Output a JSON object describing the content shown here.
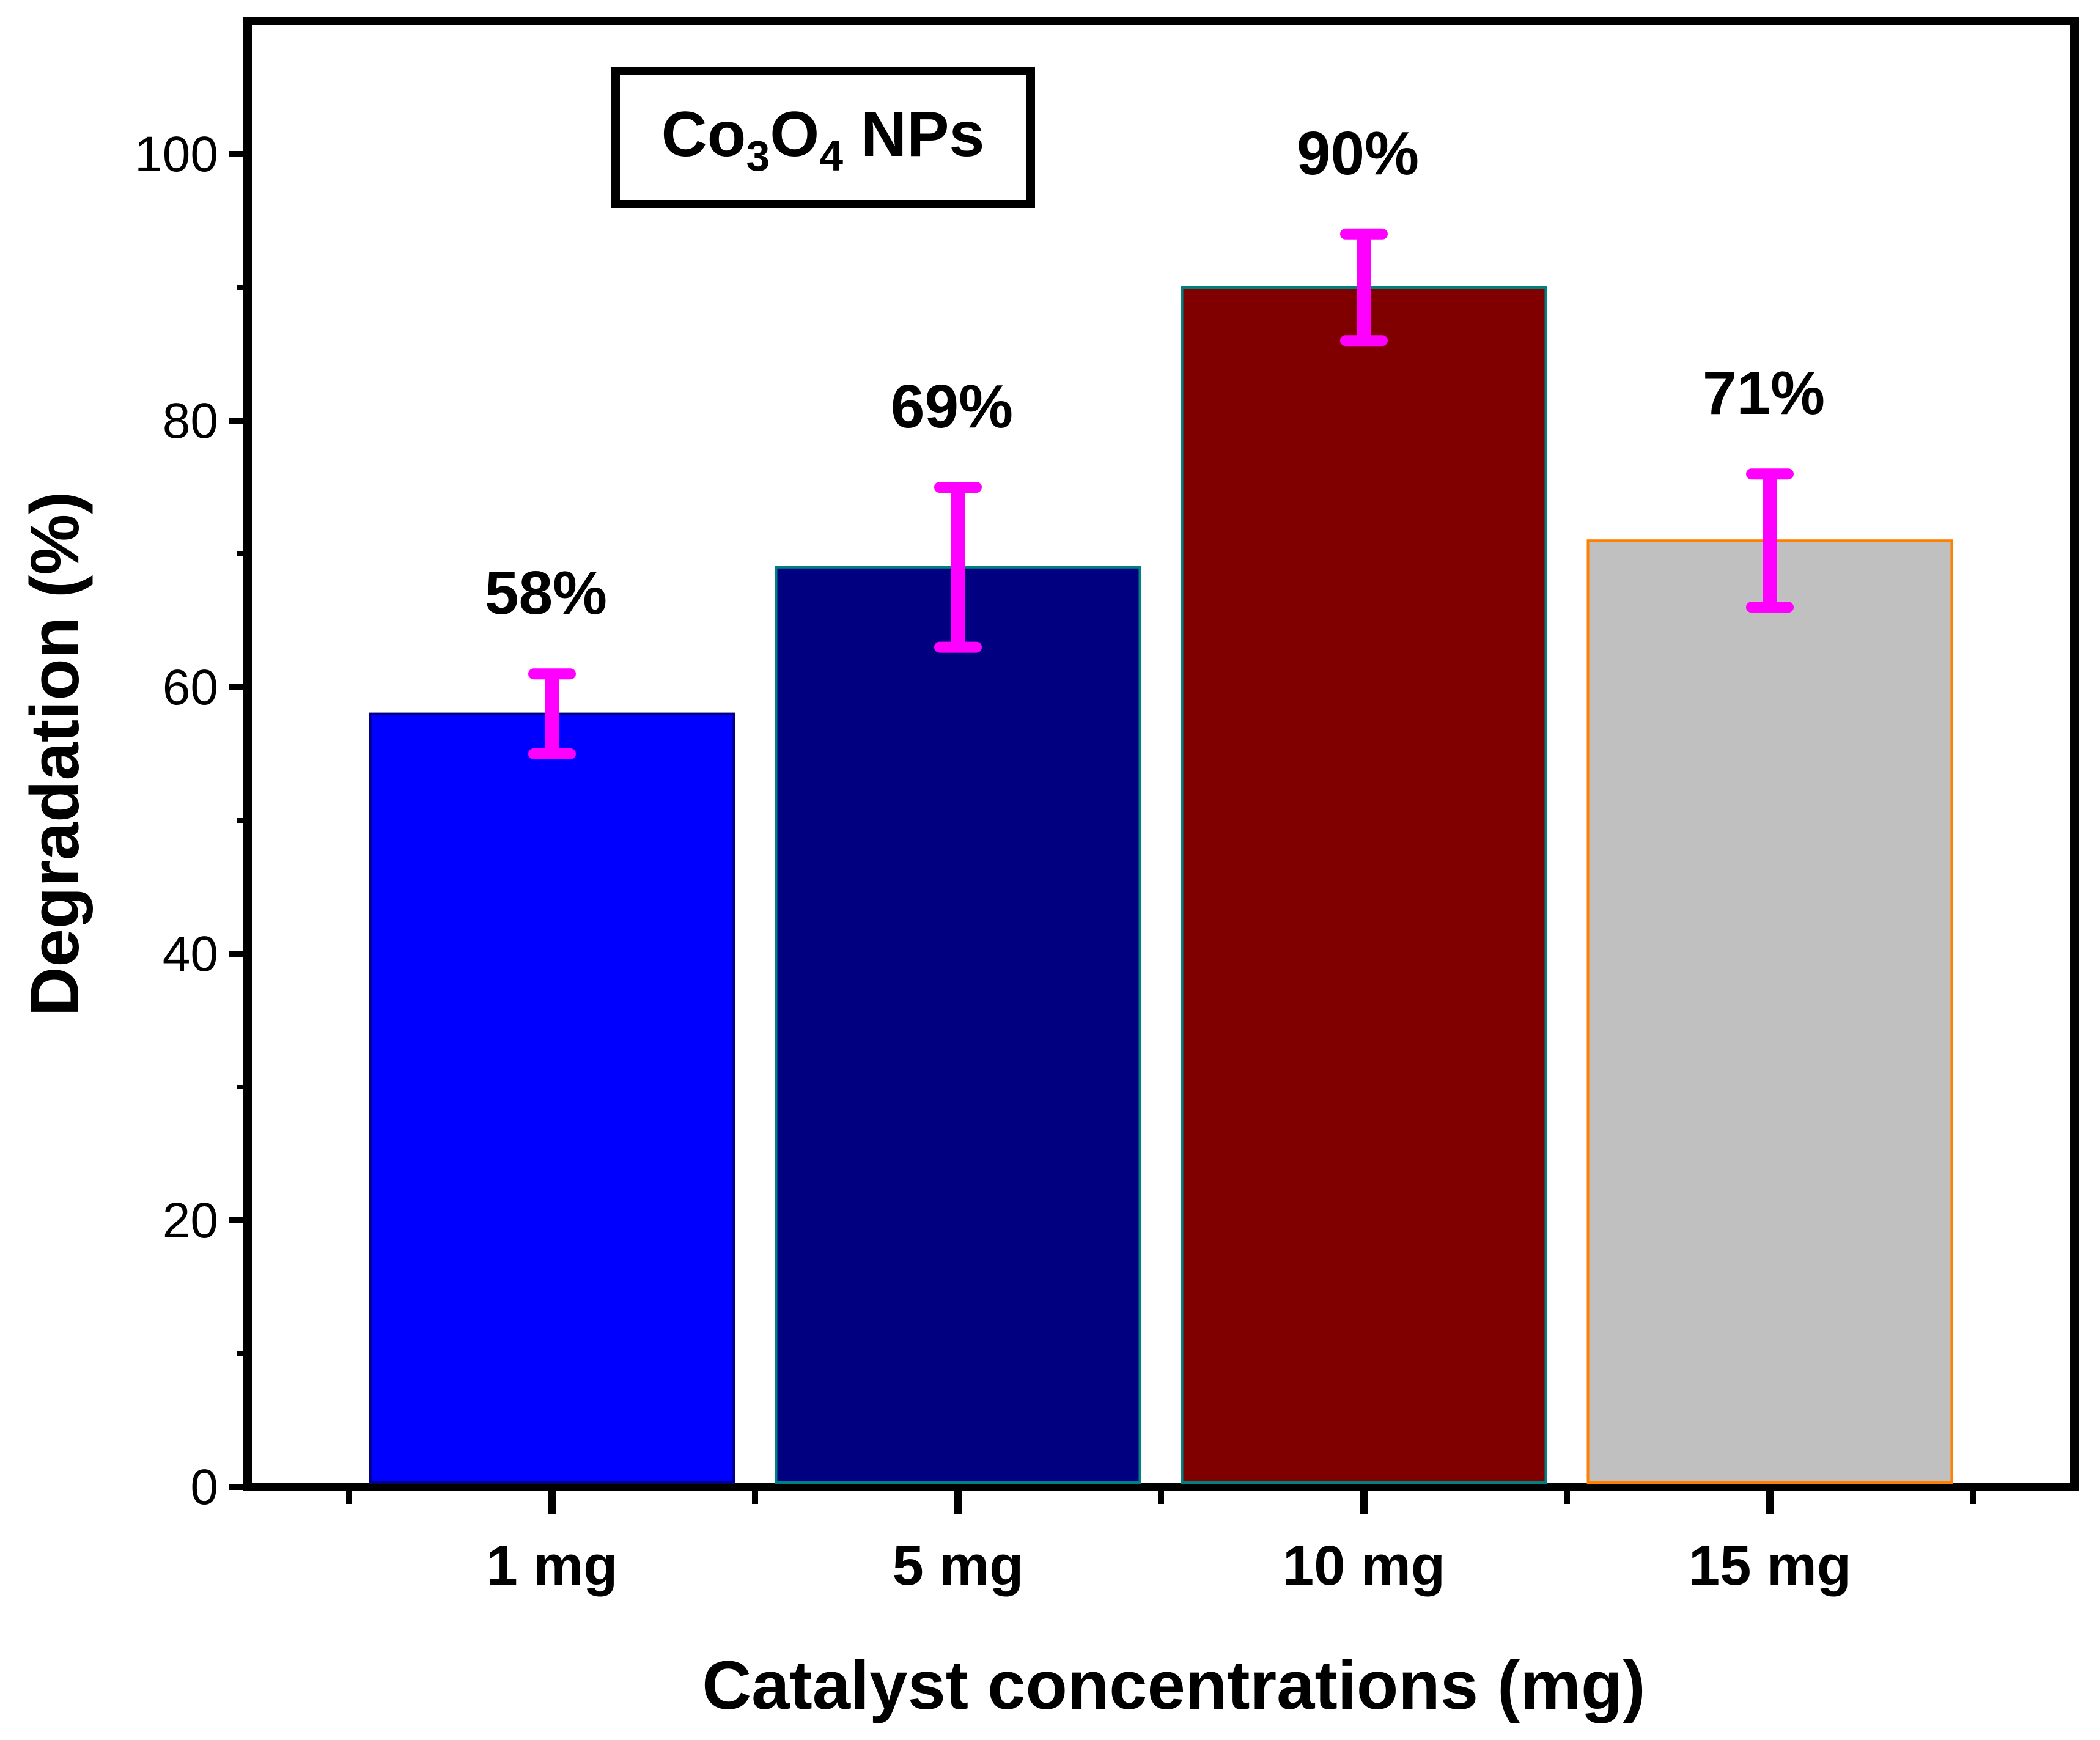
{
  "chart_data": {
    "type": "bar",
    "title": "",
    "categories": [
      "1 mg",
      "5 mg",
      "10 mg",
      "15 mg"
    ],
    "values": [
      58,
      69,
      90,
      71
    ],
    "errors": [
      3,
      6,
      4,
      5
    ],
    "data_labels": [
      "58%",
      "69%",
      "90%",
      "71%"
    ],
    "bar_colors": [
      "#0000ff",
      "#000080",
      "#800000",
      "#c0c0c0"
    ],
    "bar_edge_colors": [
      "#000080",
      "#008080",
      "#008080",
      "#ff8000"
    ],
    "error_bar_color": "#ff00ff",
    "xlabel": "Catalyst concentrations (mg)",
    "ylabel": "Degradation (%)",
    "ylim": [
      0,
      110
    ],
    "yticks": [
      0,
      20,
      40,
      60,
      80,
      100
    ],
    "yminor_step": 10,
    "legend": {
      "text_main": "Co",
      "sub1": "3",
      "text_mid": "O",
      "sub2": "4",
      "text_tail": " NPs",
      "placement": "top-left"
    }
  }
}
